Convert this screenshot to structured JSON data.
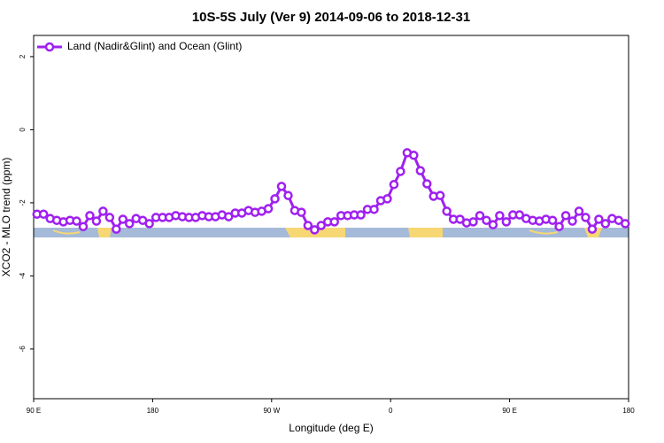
{
  "chart_data": {
    "type": "line",
    "title": "10S-5S July (Ver 9)   2014-09-06 to 2018-12-31",
    "x_label": "Longitude (deg E)",
    "y_label": "XCO2 - MLO trend (ppm)",
    "x": [
      92.5,
      97.5,
      102.5,
      107.5,
      112.5,
      117.5,
      122.5,
      127.5,
      132.5,
      137.5,
      142.5,
      147.5,
      152.5,
      157.5,
      162.5,
      167.5,
      172.5,
      177.5,
      182.5,
      187.5,
      192.5,
      197.5,
      202.5,
      207.5,
      212.5,
      217.5,
      222.5,
      227.5,
      232.5,
      237.5,
      242.5,
      247.5,
      252.5,
      257.5,
      262.5,
      267.5,
      272.5,
      277.5,
      282.5,
      287.5,
      292.5,
      297.5,
      302.5,
      307.5,
      312.5,
      317.5,
      322.5,
      327.5,
      332.5,
      337.5,
      342.5,
      347.5,
      352.5,
      357.5,
      362.5,
      367.5,
      372.5,
      377.5,
      382.5,
      387.5,
      392.5,
      397.5,
      402.5,
      407.5,
      412.5,
      417.5,
      422.5,
      427.5,
      432.5,
      437.5,
      442.5,
      447.5,
      452.5,
      457.5,
      462.5,
      467.5,
      472.5,
      477.5,
      482.5,
      487.5,
      492.5,
      497.5,
      502.5,
      507.5,
      512.5,
      517.5,
      522.5,
      527.5,
      532.5,
      537.5
    ],
    "series": [
      {
        "name": "Land (Nadir&Glint) and Ocean (Glint)",
        "color": "#a020f0",
        "values": [
          -2.31,
          -2.31,
          -2.43,
          -2.48,
          -2.52,
          -2.48,
          -2.5,
          -2.65,
          -2.35,
          -2.5,
          -2.23,
          -2.4,
          -2.72,
          -2.45,
          -2.57,
          -2.43,
          -2.48,
          -2.57,
          -2.4,
          -2.4,
          -2.4,
          -2.35,
          -2.38,
          -2.4,
          -2.4,
          -2.35,
          -2.38,
          -2.38,
          -2.33,
          -2.38,
          -2.28,
          -2.28,
          -2.21,
          -2.26,
          -2.23,
          -2.16,
          -1.89,
          -1.55,
          -1.8,
          -2.21,
          -2.26,
          -2.62,
          -2.74,
          -2.62,
          -2.52,
          -2.52,
          -2.35,
          -2.35,
          -2.33,
          -2.33,
          -2.18,
          -2.18,
          -1.94,
          -1.89,
          -1.5,
          -1.14,
          -0.63,
          -0.7,
          -1.12,
          -1.48,
          -1.82,
          -1.8,
          -2.23,
          -2.45,
          -2.45,
          -2.55,
          -2.52,
          -2.35,
          -2.48,
          -2.6,
          -2.35,
          -2.52,
          -2.33,
          -2.33,
          -2.43,
          -2.48,
          -2.5,
          -2.45,
          -2.48,
          -2.65,
          -2.35,
          -2.5,
          -2.23,
          -2.4,
          -2.72,
          -2.45,
          -2.57,
          -2.43,
          -2.48,
          -2.57
        ]
      }
    ],
    "xlim": [
      90,
      540
    ],
    "xticks": [
      {
        "value": 90,
        "label": "90 E"
      },
      180,
      {
        "value": 270,
        "label": "90 W"
      },
      {
        "value": 360,
        "label": "0"
      },
      {
        "value": 450,
        "label": "90 E"
      },
      {
        "value": 540,
        "label": "180"
      }
    ],
    "ylim": [
      -7.36,
      2.58
    ],
    "yticks": [
      -6,
      -4,
      -2,
      0,
      2
    ],
    "legend": "top-left"
  }
}
